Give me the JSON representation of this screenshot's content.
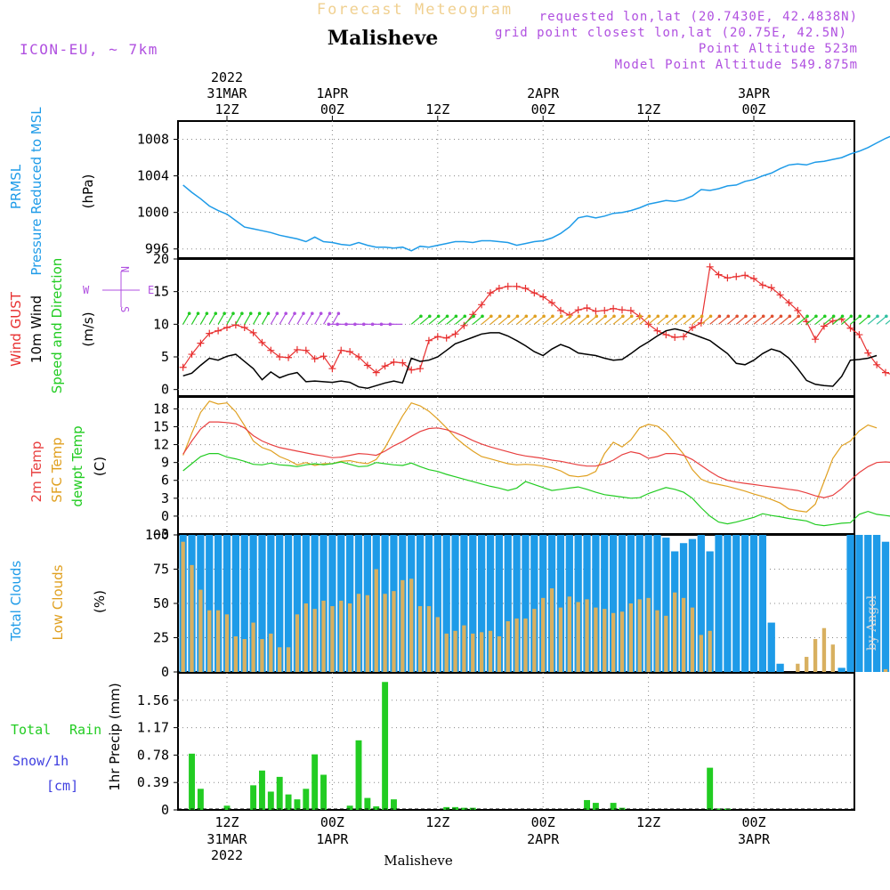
{
  "header": {
    "subtitle": "Forecast Meteogram",
    "title": "Malisheve",
    "model": "ICON-EU, ~ 7km",
    "requested": "requested lon,lat (20.7430E, 42.4838N)",
    "grid_point": "grid point closest lon,lat (20.75E, 42.5N)",
    "point_alt": "Point Altitude 523m",
    "model_alt": "Model Point Altitude 549.875m",
    "watermark": "by Angel",
    "footer": "Malisheve"
  },
  "time_axis": {
    "top_year": "2022",
    "labels": [
      {
        "line1": "31MAR",
        "line2": "12Z",
        "hour": 12
      },
      {
        "line1": "1APR",
        "line2": "00Z",
        "hour": 24
      },
      {
        "line1": "",
        "line2": "12Z",
        "hour": 36
      },
      {
        "line1": "2APR",
        "line2": "00Z",
        "hour": 48
      },
      {
        "line1": "",
        "line2": "12Z",
        "hour": 60
      },
      {
        "line1": "3APR",
        "line2": "00Z",
        "hour": 72
      }
    ],
    "bottom": [
      {
        "line1": "12Z",
        "line2": "31MAR",
        "line3": "2022",
        "hour": 12
      },
      {
        "line1": "00Z",
        "line2": "1APR",
        "line3": "",
        "hour": 24
      },
      {
        "line1": "12Z",
        "line2": "",
        "line3": "",
        "hour": 36
      },
      {
        "line1": "00Z",
        "line2": "2APR",
        "line3": "",
        "hour": 48
      },
      {
        "line1": "12Z",
        "line2": "",
        "line3": "",
        "hour": 60
      },
      {
        "line1": "00Z",
        "line2": "3APR",
        "line3": "",
        "hour": 72
      }
    ]
  },
  "panel_labels": {
    "pressure": {
      "l1": "PRMSL",
      "l2": "Pressure Reduced to MSL",
      "unit": "(hPa)"
    },
    "wind": {
      "l1": "Wind GUST",
      "l2": "10m Wind",
      "l3": "Speed and Direction",
      "unit": "(m/s)",
      "compass": {
        "n": "N",
        "s": "S",
        "w": "W",
        "e": "E"
      }
    },
    "temp": {
      "l1": "2m Temp",
      "l2": "SFC Temp",
      "l3": "dewpt Temp",
      "unit": "(C)"
    },
    "clouds": {
      "l1": "Total Clouds",
      "l2": "Low Clouds",
      "unit": "(%)"
    },
    "precip": {
      "l1": "Total",
      "l1b": "Rain",
      "l2": "Snow/1h",
      "l3": "[cm]",
      "unit": "1hr Precip (mm)"
    }
  },
  "colors": {
    "pressure": "#1e9be8",
    "gust": "#e83030",
    "wind": "#000000",
    "temp2m": "#e84040",
    "sfc": "#e0a020",
    "dewpt": "#22cc22",
    "total_cloud": "#1e9be8",
    "low_cloud": "#d8b060",
    "rain": "#22cc22",
    "purple": "#b050e0"
  },
  "chart_data": [
    {
      "type": "line",
      "name": "pressure",
      "x_start_hour": 7,
      "x_step_hours": 1,
      "ylim": [
        995,
        1010
      ],
      "yticks": [
        996,
        1000,
        1004,
        1008
      ],
      "series": [
        {
          "name": "PRMSL",
          "values": [
            1003,
            1002.2,
            1001.5,
            1000.7,
            1000.2,
            999.8,
            999.1,
            998.4,
            998.2,
            998,
            997.8,
            997.5,
            997.3,
            997.1,
            996.8,
            997.3,
            996.8,
            996.7,
            996.5,
            996.4,
            996.7,
            996.4,
            996.2,
            996.2,
            996.1,
            996.2,
            995.8,
            996.3,
            996.2,
            996.4,
            996.6,
            996.8,
            996.8,
            996.7,
            996.9,
            996.9,
            996.8,
            996.7,
            996.4,
            996.6,
            996.8,
            996.9,
            997.2,
            997.7,
            998.4,
            999.4,
            999.6,
            999.4,
            999.6,
            999.9,
            1000,
            1000.2,
            1000.5,
            1000.9,
            1001.1,
            1001.3,
            1001.2,
            1001.4,
            1001.8,
            1002.5,
            1002.4,
            1002.6,
            1002.9,
            1003.0,
            1003.4,
            1003.6,
            1004.0,
            1004.3,
            1004.8,
            1005.2,
            1005.3,
            1005.2,
            1005.5,
            1005.6,
            1005.8,
            1006.0,
            1006.4,
            1006.7,
            1007.1,
            1007.6,
            1008.1,
            1008.5,
            1009.0,
            1009.2,
            1009.3,
            1009.3,
            1009.4
          ]
        }
      ]
    },
    {
      "type": "line",
      "name": "wind",
      "x_start_hour": 7,
      "x_step_hours": 1,
      "ylim": [
        -1,
        20
      ],
      "yticks": [
        0,
        5,
        10,
        15,
        20
      ],
      "series": [
        {
          "name": "Wind GUST",
          "values": [
            3.4,
            5.4,
            7.1,
            8.6,
            9.0,
            9.5,
            9.9,
            9.5,
            8.7,
            7.2,
            6.0,
            5.0,
            4.9,
            6.1,
            6.0,
            4.7,
            5.1,
            3.2,
            6.0,
            5.8,
            5.0,
            3.7,
            2.6,
            3.6,
            4.2,
            4.1,
            3.0,
            3.2,
            7.5,
            8.1,
            7.9,
            8.5,
            9.8,
            11.5,
            13.0,
            14.8,
            15.5,
            15.8,
            15.8,
            15.5,
            14.8,
            14.2,
            13.3,
            12.1,
            11.4,
            12.2,
            12.5,
            12.0,
            12.1,
            12.4,
            12.2,
            12.1,
            11.2,
            10.0,
            9.0,
            8.4,
            8.0,
            8.1,
            9.5,
            10.2,
            18.8,
            17.6,
            17.1,
            17.3,
            17.5,
            17.0,
            16.0,
            15.6,
            14.5,
            13.3,
            12.1,
            10.4,
            7.7,
            9.7,
            10.5,
            10.8,
            9.4,
            8.4,
            5.6,
            3.8,
            2.6,
            2.2,
            2.0,
            2.0,
            1.6,
            4.6,
            8.9,
            9.0,
            9.1,
            9.5,
            10.0
          ]
        },
        {
          "name": "10m Wind",
          "values": [
            2.1,
            2.5,
            3.7,
            4.8,
            4.5,
            5.1,
            5.4,
            4.3,
            3.2,
            1.5,
            2.7,
            1.8,
            2.3,
            2.6,
            1.2,
            1.3,
            1.2,
            1.1,
            1.3,
            1.1,
            0.4,
            0.2,
            0.6,
            1.0,
            1.3,
            1.0,
            4.8,
            4.3,
            4.5,
            5.0,
            6.0,
            7.0,
            7.5,
            8.0,
            8.5,
            8.7,
            8.7,
            8.2,
            7.5,
            6.7,
            5.8,
            5.2,
            6.2,
            6.9,
            6.4,
            5.6,
            5.4,
            5.2,
            4.8,
            4.5,
            4.6,
            5.5,
            6.5,
            7.3,
            8.2,
            9.0,
            9.3,
            9.0,
            8.5,
            8.0,
            7.5,
            6.5,
            5.5,
            4.0,
            3.8,
            4.5,
            5.5,
            6.2,
            5.8,
            4.8,
            3.2,
            1.4,
            0.8,
            0.6,
            0.5,
            2.0,
            4.5,
            4.6,
            4.8,
            5.2
          ]
        }
      ]
    },
    {
      "type": "line",
      "name": "temperature",
      "x_start_hour": 7,
      "x_step_hours": 1,
      "ylim": [
        -3,
        20
      ],
      "yticks": [
        0,
        3,
        6,
        9,
        12,
        15,
        18
      ],
      "series": [
        {
          "name": "2m Temp",
          "values": [
            10.4,
            12.6,
            14.6,
            15.8,
            15.8,
            15.7,
            15.5,
            14.8,
            13.5,
            12.6,
            12.0,
            11.5,
            11.2,
            10.9,
            10.6,
            10.3,
            10.1,
            9.8,
            9.9,
            10.2,
            10.5,
            10.4,
            10.2,
            10.9,
            11.8,
            12.5,
            13.4,
            14.2,
            14.7,
            14.8,
            14.5,
            14.0,
            13.4,
            12.7,
            12.1,
            11.6,
            11.2,
            10.8,
            10.4,
            10.1,
            9.9,
            9.7,
            9.4,
            9.2,
            8.9,
            8.6,
            8.4,
            8.4,
            8.8,
            9.4,
            10.3,
            10.8,
            10.5,
            9.7,
            10.0,
            10.5,
            10.5,
            10.2,
            9.5,
            8.5,
            7.5,
            6.6,
            6.0,
            5.7,
            5.5,
            5.3,
            5.1,
            4.9,
            4.7,
            4.5,
            4.3,
            3.9,
            3.4,
            3.1,
            3.5,
            4.6,
            6.0,
            7.3,
            8.3,
            9.0,
            9.1,
            9.0
          ]
        },
        {
          "name": "SFC Temp",
          "values": [
            10.2,
            13.9,
            17.4,
            19.3,
            18.8,
            19.0,
            17.5,
            15.2,
            12.6,
            11.5,
            11.0,
            10.0,
            9.4,
            8.6,
            9.0,
            8.5,
            8.8,
            8.8,
            9.2,
            9.3,
            9.0,
            8.8,
            9.5,
            11.5,
            14.2,
            16.8,
            19.0,
            18.5,
            17.6,
            16.3,
            14.8,
            13.2,
            12.0,
            10.9,
            10.0,
            9.6,
            9.2,
            8.8,
            8.6,
            8.7,
            8.6,
            8.4,
            8.1,
            7.6,
            6.8,
            6.6,
            6.8,
            7.5,
            10.5,
            12.4,
            11.6,
            12.8,
            14.8,
            15.4,
            15.1,
            14.0,
            12.2,
            10.4,
            7.8,
            6.2,
            5.6,
            5.3,
            5.0,
            4.6,
            4.2,
            3.7,
            3.3,
            2.8,
            2.2,
            1.2,
            0.9,
            0.7,
            2.0,
            5.8,
            9.7,
            11.8,
            12.6,
            14.3,
            15.3,
            14.8
          ]
        },
        {
          "name": "dewpt Temp",
          "values": [
            7.6,
            8.8,
            10.0,
            10.5,
            10.5,
            9.9,
            9.6,
            9.2,
            8.7,
            8.6,
            8.9,
            8.6,
            8.5,
            8.3,
            8.6,
            8.8,
            8.6,
            8.8,
            9.1,
            8.7,
            8.3,
            8.4,
            9.0,
            8.8,
            8.6,
            8.5,
            8.9,
            8.3,
            7.8,
            7.5,
            7.0,
            6.6,
            6.2,
            5.8,
            5.4,
            5.0,
            4.7,
            4.3,
            4.7,
            5.8,
            5.3,
            4.8,
            4.3,
            4.5,
            4.7,
            4.9,
            4.5,
            4.0,
            3.6,
            3.4,
            3.2,
            3.0,
            3.1,
            3.8,
            4.3,
            4.8,
            4.5,
            4.0,
            3.0,
            1.4,
            0.0,
            -1.0,
            -1.3,
            -1.0,
            -0.6,
            -0.2,
            0.4,
            0.1,
            -0.1,
            -0.4,
            -0.6,
            -0.8,
            -1.4,
            -1.6,
            -1.4,
            -1.2,
            -1.1,
            0.3,
            0.8,
            0.3,
            0.1,
            -0.1,
            0.3,
            1.0,
            0.9
          ]
        }
      ]
    },
    {
      "type": "bar",
      "name": "clouds",
      "x_start_hour": 7,
      "x_step_hours": 1,
      "ylim": [
        0,
        100
      ],
      "yticks": [
        0,
        25,
        50,
        75,
        100
      ],
      "series": [
        {
          "name": "Total Clouds",
          "values": [
            100,
            100,
            100,
            100,
            100,
            100,
            100,
            100,
            100,
            100,
            100,
            100,
            100,
            100,
            100,
            100,
            100,
            100,
            100,
            100,
            100,
            100,
            100,
            100,
            100,
            100,
            100,
            100,
            100,
            100,
            100,
            100,
            100,
            100,
            100,
            100,
            100,
            100,
            100,
            100,
            100,
            100,
            100,
            100,
            100,
            100,
            100,
            100,
            100,
            100,
            100,
            100,
            100,
            100,
            100,
            98,
            88,
            94,
            97,
            100,
            88,
            100,
            100,
            100,
            100,
            100,
            100,
            36,
            6,
            0,
            0,
            0,
            0,
            0,
            0,
            3,
            100,
            100,
            100,
            100,
            95,
            100,
            95,
            95,
            95,
            74,
            90,
            100,
            100,
            100,
            100,
            100,
            100,
            100,
            100,
            100,
            100,
            100,
            100,
            100
          ]
        },
        {
          "name": "Low Clouds",
          "values": [
            95,
            78,
            60,
            45,
            45,
            42,
            26,
            24,
            36,
            24,
            28,
            18,
            18,
            42,
            50,
            46,
            52,
            48,
            52,
            50,
            57,
            56,
            75,
            57,
            59,
            67,
            68,
            48,
            48,
            40,
            28,
            30,
            34,
            28,
            29,
            30,
            26,
            37,
            39,
            39,
            46,
            54,
            61,
            47,
            55,
            51,
            53,
            47,
            46,
            43,
            44,
            50,
            53,
            54,
            45,
            41,
            58,
            54,
            47,
            27,
            30,
            0,
            0,
            0,
            0,
            0,
            0,
            0,
            0,
            0,
            6,
            11,
            24,
            32,
            20,
            0,
            0,
            0,
            0,
            0,
            2,
            0,
            0,
            0,
            0,
            0,
            0,
            0,
            31,
            55,
            59,
            40,
            54,
            58,
            40
          ]
        }
      ]
    },
    {
      "type": "bar",
      "name": "precipitation",
      "x_start_hour": 7,
      "x_step_hours": 1,
      "ylim": [
        0,
        1.95
      ],
      "yticks": [
        0,
        0.39,
        0.78,
        1.17,
        1.56
      ],
      "series": [
        {
          "name": "Rain",
          "values": [
            0,
            0.8,
            0.3,
            0,
            0,
            0.06,
            0,
            0,
            0.35,
            0.56,
            0.26,
            0.47,
            0.22,
            0.15,
            0.3,
            0.79,
            0.5,
            0,
            0,
            0.06,
            0.99,
            0.17,
            0.05,
            1.82,
            0.15,
            0,
            0,
            0,
            0,
            0,
            0.04,
            0.04,
            0.03,
            0.03,
            0,
            0,
            0,
            0,
            0,
            0,
            0,
            0,
            0,
            0,
            0,
            0,
            0.14,
            0.1,
            0,
            0.1,
            0.03,
            0,
            0,
            0,
            0,
            0,
            0,
            0,
            0,
            0,
            0.6,
            0.02,
            0.02,
            0,
            0,
            0,
            0,
            0,
            0,
            0,
            0,
            0,
            0,
            0,
            0,
            0,
            0,
            0,
            0,
            0,
            0,
            0,
            0,
            0,
            0,
            0,
            0,
            0,
            0,
            0.11,
            0.1,
            0.12
          ]
        }
      ]
    }
  ]
}
